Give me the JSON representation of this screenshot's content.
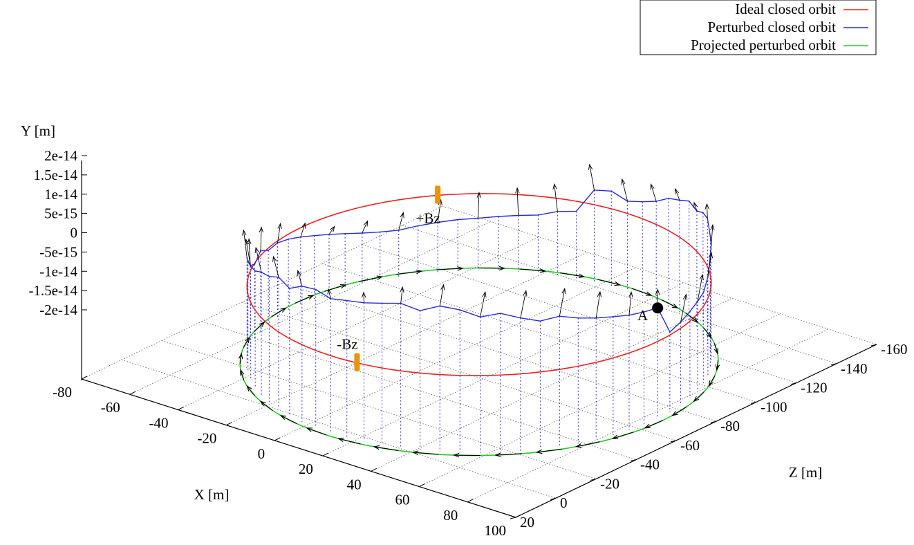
{
  "chart_data": {
    "type": "line",
    "dimensions": 3,
    "xlabel": "X [m]",
    "ylabel": "Y [m]",
    "zlabel": "Z [m]",
    "xlim": [
      -80,
      100
    ],
    "ylim": [
      -2e-14,
      2e-14
    ],
    "zlim": [
      -160,
      20
    ],
    "x_ticks": [
      "-80",
      "-60",
      "-40",
      "-20",
      "0",
      "20",
      "40",
      "60",
      "80",
      "100"
    ],
    "y_ticks": [
      "2e-14",
      "1.5e-14",
      "1e-14",
      "5e-15",
      "0",
      "-5e-15",
      "-1e-14",
      "-1.5e-14",
      "-2e-14"
    ],
    "z_ticks": [
      "20",
      "0",
      "-20",
      "-40",
      "-60",
      "-80",
      "-100",
      "-120",
      "-140",
      "-160"
    ],
    "grid": true,
    "legend_position": "top-right",
    "ring": {
      "center_x": 10,
      "center_z": -70,
      "radius": 74
    },
    "series": [
      {
        "name": "Ideal closed orbit",
        "color": "#e8231f",
        "y": 0
      },
      {
        "name": "Perturbed closed orbit",
        "color": "#2a2ad8",
        "y": [
          8.7e-15,
          9.2e-15,
          9.8e-15,
          1.07e-14,
          1.15e-14,
          1.25e-14,
          1.38e-14,
          1.32e-14,
          1.45e-14,
          1.6e-14,
          1.52e-14,
          1.7e-14,
          1.78e-14,
          1.62e-14,
          1.75e-14,
          1.68e-14,
          1.6e-14,
          1.55e-14,
          1.48e-14,
          1.58e-14,
          1.52e-14,
          1.3e-14,
          1.42e-14,
          1.26e-14,
          1.18e-14,
          1.02e-14,
          9.4e-15,
          8.6e-15,
          7.5e-15,
          4.8e-15,
          1.4e-15,
          -3e-16,
          1.2e-15,
          -6e-16,
          -5e-16,
          -1.3e-15,
          -2.4e-15,
          -3.6e-15,
          -4.7e-15,
          -5.8e-15,
          -6.8e-15,
          -7.5e-15,
          -7.9e-15,
          -7.4e-15,
          -7e-15,
          -6.6e-15,
          -6.4e-15,
          -5.9e-15,
          -5.4e-15,
          -4.9e-15,
          -3.4e-15,
          -2.6e-15,
          3.8e-15,
          4.6e-15,
          3.2e-15,
          4.4e-15,
          6e-15,
          8.4e-15,
          9.6e-15,
          1.12e-14,
          1.05e-14,
          1.2e-14,
          1.25e-14,
          1e-14,
          9.8e-15,
          9.4e-15,
          5.6e-15,
          3.6e-15,
          3.2e-15,
          2.5e-15,
          1.6e-15,
          8e-16
        ]
      },
      {
        "name": "Projected perturbed orbit",
        "color": "#22cc22",
        "y": -2e-14
      }
    ],
    "magnets": [
      {
        "label": "-Bz",
        "color": "#e8950b",
        "angle_deg": 82
      },
      {
        "label": "+Bz",
        "color": "#e8950b",
        "angle_deg": 220
      }
    ],
    "marker": {
      "label": "A",
      "color": "#000000"
    }
  }
}
